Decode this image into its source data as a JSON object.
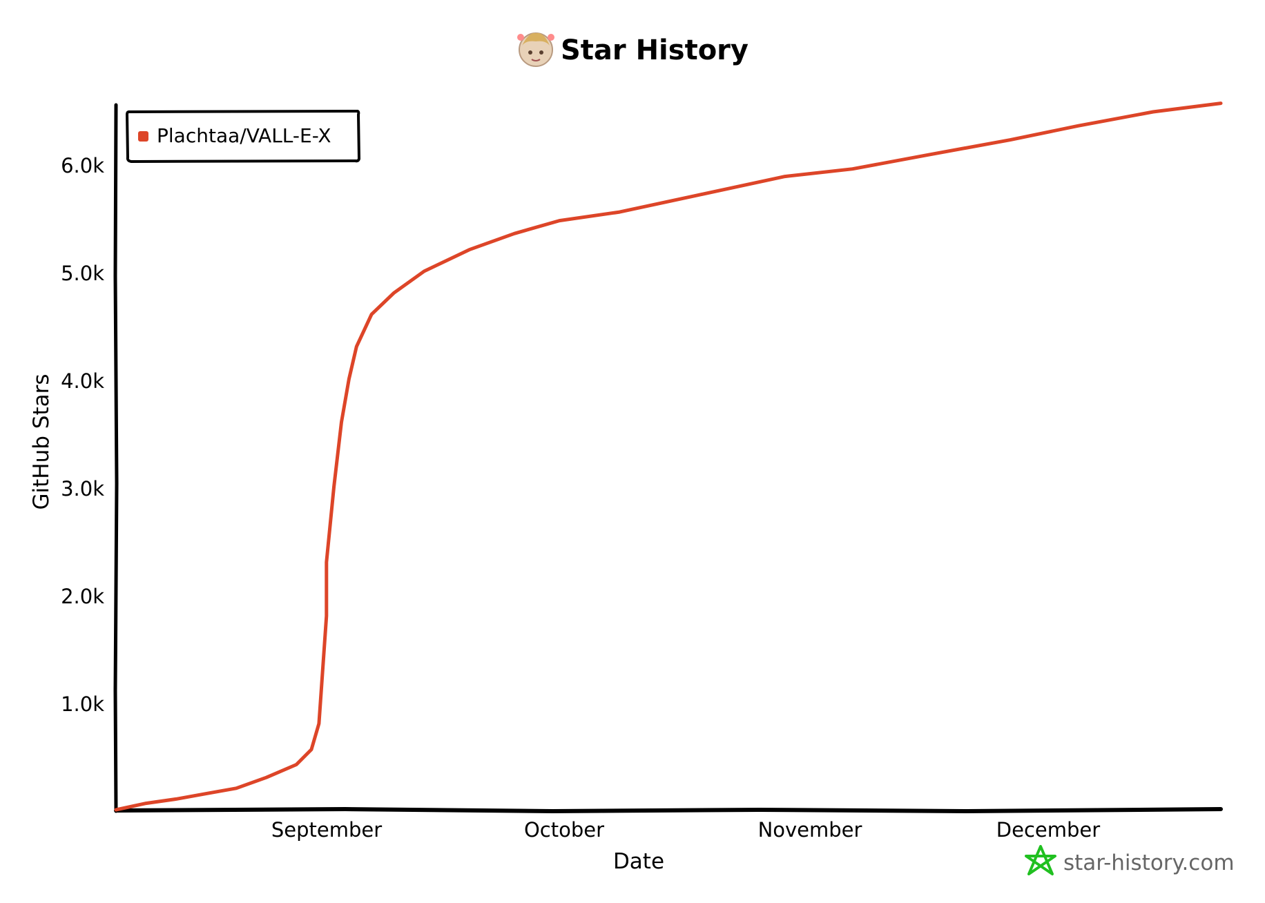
{
  "chart_data": {
    "type": "line",
    "title": "Star History",
    "xlabel": "Date",
    "ylabel": "GitHub Stars",
    "x_ticks": [
      "September",
      "October",
      "November",
      "December"
    ],
    "y_ticks": [
      "1.0k",
      "2.0k",
      "3.0k",
      "4.0k",
      "5.0k",
      "6.0k"
    ],
    "ylim": [
      0,
      6570
    ],
    "xlim": [
      "2023-08-04",
      "2023-12-29"
    ],
    "legend_position": "top-left",
    "grid": false,
    "series": [
      {
        "name": "Plachtaa/VALL-E-X",
        "color": "#dd4528",
        "points": [
          [
            "2023-08-04",
            0
          ],
          [
            "2023-08-08",
            60
          ],
          [
            "2023-08-12",
            100
          ],
          [
            "2023-08-16",
            150
          ],
          [
            "2023-08-20",
            200
          ],
          [
            "2023-08-24",
            300
          ],
          [
            "2023-08-28",
            420
          ],
          [
            "2023-08-30",
            560
          ],
          [
            "2023-08-31",
            800
          ],
          [
            "2023-09-01",
            1800
          ],
          [
            "2023-09-01",
            2300
          ],
          [
            "2023-09-02",
            3000
          ],
          [
            "2023-09-03",
            3600
          ],
          [
            "2023-09-04",
            4000
          ],
          [
            "2023-09-05",
            4300
          ],
          [
            "2023-09-07",
            4600
          ],
          [
            "2023-09-10",
            4800
          ],
          [
            "2023-09-14",
            5000
          ],
          [
            "2023-09-20",
            5200
          ],
          [
            "2023-09-26",
            5350
          ],
          [
            "2023-10-02",
            5470
          ],
          [
            "2023-10-10",
            5550
          ],
          [
            "2023-10-20",
            5700
          ],
          [
            "2023-11-01",
            5880
          ],
          [
            "2023-11-10",
            5950
          ],
          [
            "2023-11-20",
            6080
          ],
          [
            "2023-12-01",
            6220
          ],
          [
            "2023-12-10",
            6350
          ],
          [
            "2023-12-20",
            6480
          ],
          [
            "2023-12-29",
            6560
          ]
        ]
      }
    ]
  },
  "brand": {
    "text": "star-history.com",
    "color": "#20c020"
  },
  "avatar": {
    "icon": "anime-avatar-icon"
  }
}
